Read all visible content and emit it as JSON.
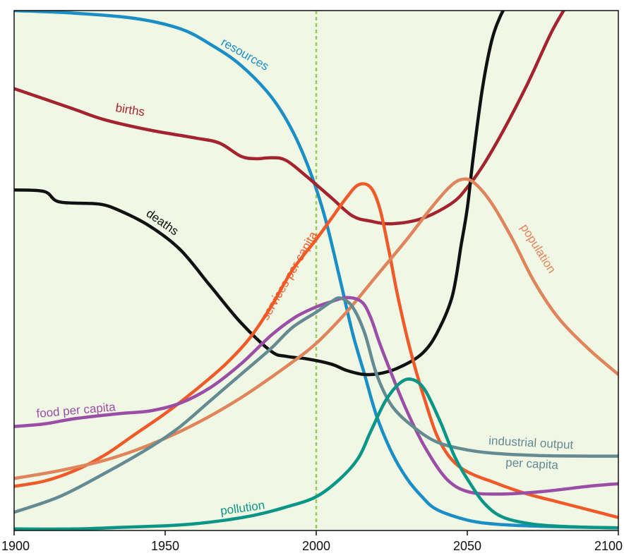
{
  "chart_data": {
    "type": "line",
    "title": "",
    "xlabel": "",
    "ylabel": "",
    "xlim": [
      1900,
      2100
    ],
    "ylim": [
      0,
      1
    ],
    "x_ticks": [
      "1900",
      "1950",
      "2000",
      "2050",
      "2100"
    ],
    "grid": false,
    "legend": "none (series labelled inline)",
    "background_color": "#f1f7e5",
    "reference_line": {
      "x": 2000,
      "style": "dashed",
      "color": "#9acd5a"
    },
    "series": [
      {
        "name": "resources",
        "color": "#1a8fc6",
        "points": [
          [
            1900,
            1.0
          ],
          [
            1920,
            0.995
          ],
          [
            1940,
            0.985
          ],
          [
            1955,
            0.965
          ],
          [
            1965,
            0.935
          ],
          [
            1975,
            0.895
          ],
          [
            1985,
            0.835
          ],
          [
            1992,
            0.77
          ],
          [
            1998,
            0.69
          ],
          [
            2003,
            0.6
          ],
          [
            2008,
            0.48
          ],
          [
            2012,
            0.38
          ],
          [
            2016,
            0.3
          ],
          [
            2020,
            0.22
          ],
          [
            2025,
            0.15
          ],
          [
            2030,
            0.1
          ],
          [
            2035,
            0.065
          ],
          [
            2040,
            0.04
          ],
          [
            2050,
            0.02
          ],
          [
            2060,
            0.012
          ],
          [
            2075,
            0.008
          ],
          [
            2100,
            0.005
          ]
        ]
      },
      {
        "name": "births",
        "color": "#a3232e",
        "points": [
          [
            1900,
            0.85
          ],
          [
            1910,
            0.83
          ],
          [
            1920,
            0.81
          ],
          [
            1930,
            0.79
          ],
          [
            1945,
            0.77
          ],
          [
            1960,
            0.755
          ],
          [
            1968,
            0.745
          ],
          [
            1975,
            0.72
          ],
          [
            1980,
            0.715
          ],
          [
            1985,
            0.717
          ],
          [
            1990,
            0.712
          ],
          [
            1997,
            0.68
          ],
          [
            2005,
            0.64
          ],
          [
            2012,
            0.605
          ],
          [
            2018,
            0.595
          ],
          [
            2025,
            0.59
          ],
          [
            2035,
            0.6
          ],
          [
            2045,
            0.63
          ],
          [
            2050,
            0.66
          ],
          [
            2055,
            0.7
          ],
          [
            2062,
            0.77
          ],
          [
            2070,
            0.86
          ],
          [
            2078,
            0.96
          ],
          [
            2084,
            1.02
          ]
        ]
      },
      {
        "name": "deaths",
        "color": "#111111",
        "points": [
          [
            1900,
            0.655
          ],
          [
            1910,
            0.652
          ],
          [
            1915,
            0.632
          ],
          [
            1928,
            0.628
          ],
          [
            1935,
            0.615
          ],
          [
            1945,
            0.585
          ],
          [
            1955,
            0.54
          ],
          [
            1965,
            0.47
          ],
          [
            1975,
            0.4
          ],
          [
            1985,
            0.345
          ],
          [
            1990,
            0.335
          ],
          [
            1997,
            0.33
          ],
          [
            2005,
            0.32
          ],
          [
            2010,
            0.308
          ],
          [
            2016,
            0.3
          ],
          [
            2022,
            0.303
          ],
          [
            2028,
            0.315
          ],
          [
            2035,
            0.34
          ],
          [
            2040,
            0.38
          ],
          [
            2045,
            0.45
          ],
          [
            2048,
            0.55
          ],
          [
            2050,
            0.62
          ],
          [
            2052,
            0.72
          ],
          [
            2055,
            0.85
          ],
          [
            2058,
            0.94
          ],
          [
            2061,
            0.99
          ],
          [
            2064,
            1.02
          ]
        ]
      },
      {
        "name": "services per capita",
        "color": "#f05a28",
        "points": [
          [
            1900,
            0.085
          ],
          [
            1910,
            0.095
          ],
          [
            1920,
            0.115
          ],
          [
            1930,
            0.145
          ],
          [
            1940,
            0.185
          ],
          [
            1950,
            0.225
          ],
          [
            1960,
            0.27
          ],
          [
            1970,
            0.32
          ],
          [
            1978,
            0.37
          ],
          [
            1985,
            0.43
          ],
          [
            1992,
            0.5
          ],
          [
            2000,
            0.56
          ],
          [
            2005,
            0.6
          ],
          [
            2010,
            0.64
          ],
          [
            2014,
            0.665
          ],
          [
            2018,
            0.66
          ],
          [
            2021,
            0.62
          ],
          [
            2024,
            0.54
          ],
          [
            2027,
            0.45
          ],
          [
            2031,
            0.35
          ],
          [
            2036,
            0.25
          ],
          [
            2041,
            0.17
          ],
          [
            2048,
            0.12
          ],
          [
            2060,
            0.09
          ],
          [
            2070,
            0.07
          ],
          [
            2080,
            0.055
          ],
          [
            2090,
            0.04
          ],
          [
            2100,
            0.025
          ]
        ]
      },
      {
        "name": "population",
        "color": "#e0855b",
        "points": [
          [
            1900,
            0.1
          ],
          [
            1915,
            0.115
          ],
          [
            1930,
            0.135
          ],
          [
            1945,
            0.165
          ],
          [
            1960,
            0.205
          ],
          [
            1975,
            0.255
          ],
          [
            1990,
            0.315
          ],
          [
            2000,
            0.36
          ],
          [
            2010,
            0.42
          ],
          [
            2020,
            0.49
          ],
          [
            2030,
            0.56
          ],
          [
            2038,
            0.62
          ],
          [
            2044,
            0.66
          ],
          [
            2048,
            0.675
          ],
          [
            2052,
            0.67
          ],
          [
            2058,
            0.63
          ],
          [
            2065,
            0.56
          ],
          [
            2072,
            0.48
          ],
          [
            2080,
            0.41
          ],
          [
            2090,
            0.35
          ],
          [
            2100,
            0.3
          ]
        ]
      },
      {
        "name": "food per capita",
        "color": "#9a4ea5",
        "points": [
          [
            1900,
            0.2
          ],
          [
            1910,
            0.205
          ],
          [
            1920,
            0.215
          ],
          [
            1935,
            0.225
          ],
          [
            1945,
            0.23
          ],
          [
            1955,
            0.245
          ],
          [
            1965,
            0.275
          ],
          [
            1975,
            0.32
          ],
          [
            1985,
            0.375
          ],
          [
            1993,
            0.41
          ],
          [
            2000,
            0.43
          ],
          [
            2005,
            0.44
          ],
          [
            2010,
            0.448
          ],
          [
            2015,
            0.44
          ],
          [
            2018,
            0.41
          ],
          [
            2021,
            0.36
          ],
          [
            2025,
            0.3
          ],
          [
            2030,
            0.23
          ],
          [
            2036,
            0.16
          ],
          [
            2043,
            0.1
          ],
          [
            2050,
            0.075
          ],
          [
            2060,
            0.07
          ],
          [
            2075,
            0.075
          ],
          [
            2090,
            0.085
          ],
          [
            2100,
            0.09
          ]
        ]
      },
      {
        "name": "industrial output per capita",
        "color": "#648a92",
        "points": [
          [
            1900,
            0.035
          ],
          [
            1915,
            0.065
          ],
          [
            1930,
            0.11
          ],
          [
            1945,
            0.16
          ],
          [
            1955,
            0.2
          ],
          [
            1965,
            0.25
          ],
          [
            1975,
            0.3
          ],
          [
            1985,
            0.35
          ],
          [
            1992,
            0.39
          ],
          [
            2000,
            0.42
          ],
          [
            2005,
            0.44
          ],
          [
            2008,
            0.447
          ],
          [
            2012,
            0.43
          ],
          [
            2016,
            0.38
          ],
          [
            2020,
            0.3
          ],
          [
            2025,
            0.24
          ],
          [
            2032,
            0.2
          ],
          [
            2040,
            0.17
          ],
          [
            2050,
            0.155
          ],
          [
            2060,
            0.148
          ],
          [
            2075,
            0.144
          ],
          [
            2090,
            0.143
          ],
          [
            2100,
            0.143
          ]
        ]
      },
      {
        "name": "pollution",
        "color": "#0a9686",
        "points": [
          [
            1900,
            0.003
          ],
          [
            1920,
            0.003
          ],
          [
            1935,
            0.006
          ],
          [
            1950,
            0.009
          ],
          [
            1960,
            0.013
          ],
          [
            1970,
            0.02
          ],
          [
            1980,
            0.03
          ],
          [
            1990,
            0.045
          ],
          [
            2000,
            0.065
          ],
          [
            2008,
            0.1
          ],
          [
            2014,
            0.14
          ],
          [
            2018,
            0.19
          ],
          [
            2023,
            0.25
          ],
          [
            2028,
            0.285
          ],
          [
            2032,
            0.29
          ],
          [
            2036,
            0.27
          ],
          [
            2041,
            0.21
          ],
          [
            2046,
            0.14
          ],
          [
            2051,
            0.09
          ],
          [
            2056,
            0.05
          ],
          [
            2062,
            0.025
          ],
          [
            2072,
            0.012
          ],
          [
            2085,
            0.007
          ],
          [
            2100,
            0.005
          ]
        ]
      }
    ]
  },
  "labels": {
    "resources": "resources",
    "births": "births",
    "deaths": "deaths",
    "services_per_capita": "services per capita",
    "population": "population",
    "food_per_capita": "food per capita",
    "industrial_output_line1": "industrial output",
    "industrial_output_line2": "per capita",
    "pollution": "pollution"
  }
}
